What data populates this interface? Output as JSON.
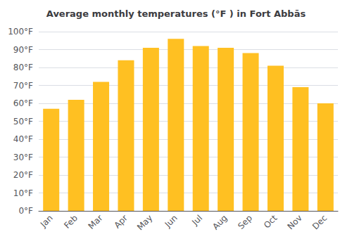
{
  "chart_data": {
    "type": "bar",
    "title": "Average monthly temperatures (°F ) in Fort Abbās",
    "categories": [
      "Jan",
      "Feb",
      "Mar",
      "Apr",
      "May",
      "Jun",
      "Jul",
      "Aug",
      "Sep",
      "Oct",
      "Nov",
      "Dec"
    ],
    "values": [
      57,
      62,
      72,
      84,
      91,
      96,
      92,
      91,
      88,
      81,
      69,
      60
    ],
    "color": "#FFC022",
    "ylim": [
      0,
      100
    ],
    "yticks": [
      {
        "value": 0,
        "label": "0°F"
      },
      {
        "value": 10,
        "label": "10°F"
      },
      {
        "value": 20,
        "label": "20°F"
      },
      {
        "value": 30,
        "label": "30°F"
      },
      {
        "value": 40,
        "label": "40°F"
      },
      {
        "value": 50,
        "label": "50°F"
      },
      {
        "value": 60,
        "label": "60°F"
      },
      {
        "value": 70,
        "label": "70°F"
      },
      {
        "value": 80,
        "label": "80°F"
      },
      {
        "value": 90,
        "label": "90°F"
      },
      {
        "value": 100,
        "label": "100°F"
      }
    ],
    "grid": true
  }
}
